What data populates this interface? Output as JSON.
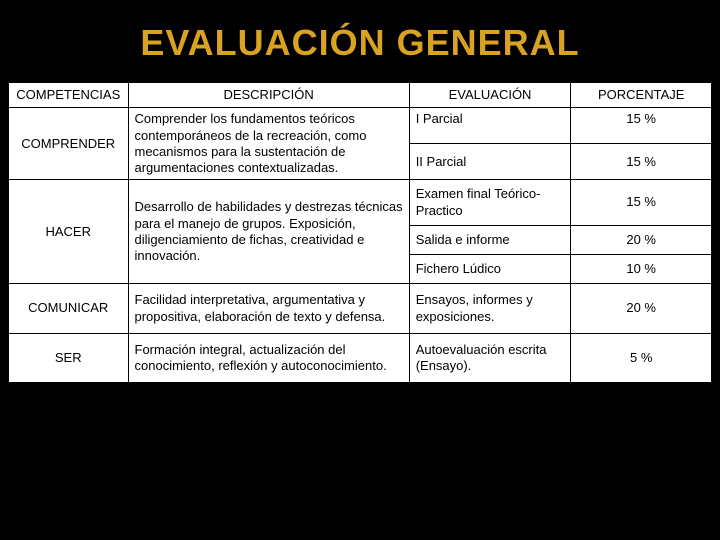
{
  "title": "EVALUACIÓN GENERAL",
  "headers": {
    "c1": "COMPETENCIAS",
    "c2": "DESCRIPCIÓN",
    "c3": "EVALUACIÓN",
    "c4": "PORCENTAJE"
  },
  "rows": {
    "comprender": {
      "comp": "COMPRENDER",
      "desc": "Comprender los fundamentos teóricos contemporáneos de la recreación, como mecanismos para la sustentación de argumentaciones contextualizadas.",
      "eval1": "I Parcial",
      "pct1": "15 %",
      "eval2": "II Parcial",
      "pct2": "15  %"
    },
    "hacer": {
      "comp": "HACER",
      "desc": "Desarrollo de habilidades y destrezas técnicas para el  manejo de grupos. Exposición, diligenciamiento de fichas, creatividad e innovación.",
      "eval1": "Examen final Teórico-Practico",
      "pct1": "15 %",
      "eval2": "Salida e informe",
      "pct2": "20 %",
      "eval3": "Fichero Lúdico",
      "pct3": "10 %"
    },
    "comunicar": {
      "comp": "COMUNICAR",
      "desc": "Facilidad interpretativa, argumentativa y propositiva, elaboración de texto y defensa.",
      "eval": "Ensayos, informes y exposiciones.",
      "pct": "20 %"
    },
    "ser": {
      "comp": "SER",
      "desc": "Formación integral, actualización del conocimiento, reflexión y autoconocimiento.",
      "eval": "Autoevaluación escrita (Ensayo).",
      "pct": "5 %"
    }
  },
  "colors": {
    "title": "#d9a221",
    "background": "#000000",
    "table_bg": "#ffffff",
    "border": "#000000",
    "text": "#000000"
  },
  "typography": {
    "title_fontsize": 36,
    "cell_fontsize": 13,
    "font_family": "Arial"
  }
}
